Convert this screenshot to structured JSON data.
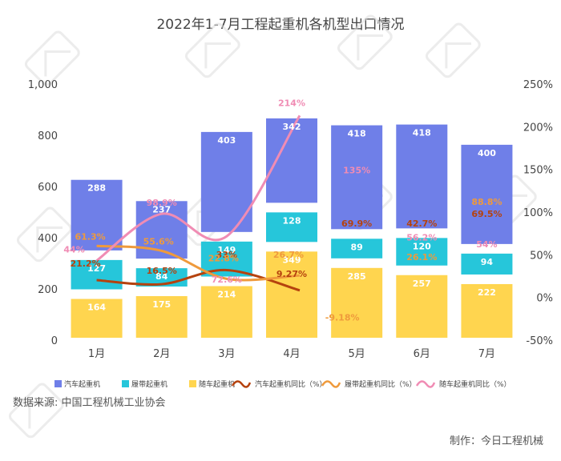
{
  "chart_data": {
    "type": "bar",
    "title": "2022年1-7月工程起重机各机型出口情况",
    "categories": [
      "1月",
      "2月",
      "3月",
      "4月",
      "5月",
      "6月",
      "7月"
    ],
    "y_left": {
      "ticks": [
        "0",
        "200",
        "400",
        "600",
        "800",
        "1,000"
      ],
      "ylim": [
        0,
        1000
      ]
    },
    "y_right": {
      "ticks": [
        "-50%",
        "0%",
        "50%",
        "100%",
        "150%",
        "200%",
        "250%"
      ],
      "ylim": [
        -50,
        250
      ]
    },
    "bar_series": [
      {
        "name": "随车起重机",
        "color": "#FFD54F",
        "values": [
          164,
          175,
          214,
          349,
          285,
          257,
          222
        ]
      },
      {
        "name": "履带起重机",
        "color": "#26C6DA",
        "values": [
          127,
          84,
          149,
          128,
          89,
          120,
          94
        ]
      },
      {
        "name": "汽车起重机",
        "color": "#6F7FE8",
        "values": [
          288,
          237,
          403,
          342,
          418,
          418,
          400
        ]
      }
    ],
    "line_series": [
      {
        "name": "汽车起重机同比（%）",
        "color": "#B5420E",
        "values": [
          21.2,
          16.5,
          33,
          9.27,
          69.9,
          42.7,
          69.5
        ],
        "labels": [
          "21.2%",
          "16.5%",
          "33%",
          "9.27%",
          "69.9%",
          "42.7%",
          "69.5%"
        ],
        "plotted_months": 4
      },
      {
        "name": "履带起重机同比（%）",
        "color": "#EF9A3C",
        "values": [
          61.3,
          55.6,
          22.8,
          26.7,
          -9.18,
          26.1,
          88.8
        ],
        "labels": [
          "61.3%",
          "55.6%",
          "22.8%",
          "26.7%",
          "-9.18%",
          "26.1%",
          "88.8%"
        ],
        "plotted_months": 4
      },
      {
        "name": "随车起重机同比（%）",
        "color": "#F08CB4",
        "values": [
          44,
          98.9,
          72.6,
          214,
          135,
          56.2,
          54
        ],
        "labels": [
          "44%",
          "98.9%",
          "72.6%",
          "214%",
          "135%",
          "56.2%",
          "54%"
        ],
        "plotted_months": 4
      }
    ],
    "legend_position": "bottom",
    "grid": false
  },
  "source": "数据来源: 中国工程机械工业协会",
  "producer": "制作：今日工程机械"
}
